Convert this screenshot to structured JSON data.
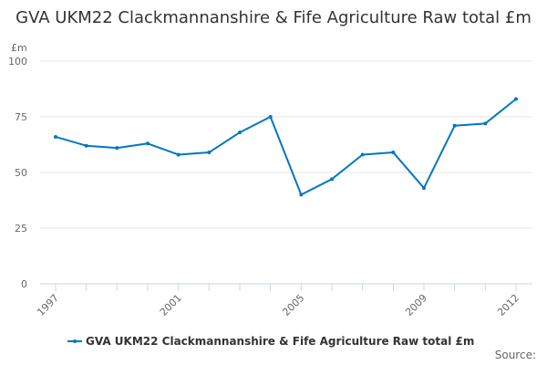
{
  "chart_data": {
    "type": "line",
    "title": "GVA UKM22 Clackmannanshire & Fife Agriculture Raw total £m",
    "ylabel": "£m",
    "xlabel": "",
    "ylim": [
      0,
      100
    ],
    "yticks": [
      0,
      25,
      50,
      75,
      100
    ],
    "xticks": [
      1997,
      2001,
      2005,
      2009,
      2012
    ],
    "grid": true,
    "legend": "bottom",
    "x": [
      1997,
      1998,
      1999,
      2000,
      2001,
      2002,
      2003,
      2004,
      2005,
      2006,
      2007,
      2008,
      2009,
      2010,
      2011,
      2012
    ],
    "series": [
      {
        "name": "GVA UKM22 Clackmannanshire & Fife Agriculture Raw total £m",
        "color": "#0077c0",
        "values": [
          66,
          62,
          61,
          63,
          58,
          59,
          68,
          75,
          40,
          47,
          58,
          59,
          43,
          71,
          72,
          83
        ]
      }
    ]
  },
  "footer": {
    "source": "Source:"
  }
}
